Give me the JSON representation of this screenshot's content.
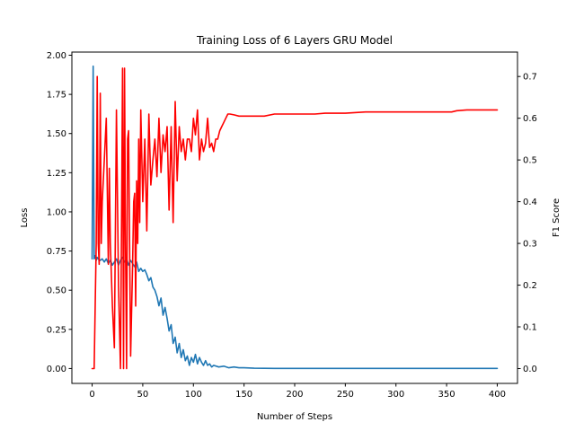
{
  "chart_data": {
    "type": "line",
    "title": "Training Loss of 6 Layers GRU Model",
    "xlabel": "Number of Steps",
    "ylabel": "Loss",
    "y2label": "F1 Score",
    "xlim": [
      -20,
      420
    ],
    "ylim": [
      -0.095,
      2.02
    ],
    "y2lim": [
      -0.0355,
      0.7585
    ],
    "xticks": [
      0,
      50,
      100,
      150,
      200,
      250,
      300,
      350,
      400
    ],
    "yticks": [
      0.0,
      0.25,
      0.5,
      0.75,
      1.0,
      1.25,
      1.5,
      1.75,
      2.0
    ],
    "ytick_labels": [
      "0.00",
      "0.25",
      "0.50",
      "0.75",
      "1.00",
      "1.25",
      "1.50",
      "1.75",
      "2.00"
    ],
    "y2ticks": [
      0.0,
      0.1,
      0.2,
      0.3,
      0.4,
      0.5,
      0.6,
      0.7
    ],
    "y2tick_labels": [
      "0.0",
      "0.1",
      "0.2",
      "0.3",
      "0.4",
      "0.5",
      "0.6",
      "0.7"
    ],
    "grid": false,
    "series": [
      {
        "axis": "left",
        "color": "#1f77b4",
        "x": [
          0,
          1,
          2,
          3,
          4,
          5,
          6,
          8,
          10,
          12,
          14,
          16,
          18,
          20,
          22,
          24,
          26,
          28,
          30,
          32,
          34,
          36,
          38,
          40,
          42,
          44,
          46,
          48,
          50,
          52,
          54,
          56,
          58,
          60,
          62,
          64,
          66,
          68,
          70,
          72,
          74,
          76,
          78,
          80,
          82,
          84,
          86,
          88,
          90,
          92,
          94,
          96,
          98,
          100,
          102,
          104,
          106,
          108,
          110,
          112,
          114,
          116,
          118,
          120,
          125,
          130,
          135,
          140,
          145,
          150,
          160,
          180,
          200,
          250,
          300,
          350,
          400
        ],
        "y": [
          0.7,
          1.93,
          0.7,
          0.72,
          0.69,
          0.71,
          0.7,
          0.69,
          0.7,
          0.68,
          0.7,
          0.67,
          0.69,
          0.66,
          0.68,
          0.7,
          0.66,
          0.69,
          0.71,
          0.68,
          0.7,
          0.66,
          0.69,
          0.67,
          0.65,
          0.68,
          0.62,
          0.64,
          0.62,
          0.63,
          0.6,
          0.56,
          0.58,
          0.52,
          0.5,
          0.46,
          0.4,
          0.45,
          0.34,
          0.39,
          0.32,
          0.24,
          0.28,
          0.16,
          0.2,
          0.1,
          0.16,
          0.07,
          0.12,
          0.05,
          0.08,
          0.02,
          0.07,
          0.04,
          0.09,
          0.03,
          0.07,
          0.04,
          0.02,
          0.05,
          0.02,
          0.03,
          0.01,
          0.02,
          0.01,
          0.015,
          0.005,
          0.01,
          0.005,
          0.005,
          0.002,
          0.001,
          0.001,
          0.001,
          0.0005,
          0.0005,
          0.0005
        ]
      },
      {
        "axis": "right",
        "color": "#ff0000",
        "x": [
          0,
          2,
          4,
          5,
          6,
          7,
          8,
          9,
          10,
          12,
          14,
          16,
          17,
          18,
          20,
          22,
          24,
          26,
          28,
          29,
          30,
          31,
          32,
          33,
          34,
          35,
          36,
          38,
          40,
          41,
          42,
          43,
          44,
          45,
          46,
          47,
          48,
          50,
          52,
          54,
          56,
          58,
          60,
          62,
          64,
          66,
          68,
          70,
          72,
          74,
          76,
          78,
          80,
          82,
          84,
          86,
          88,
          90,
          92,
          94,
          96,
          98,
          100,
          102,
          104,
          106,
          108,
          110,
          112,
          114,
          116,
          118,
          120,
          122,
          124,
          126,
          128,
          130,
          132,
          134,
          136,
          140,
          145,
          150,
          160,
          170,
          180,
          185,
          190,
          200,
          220,
          230,
          240,
          245,
          250,
          270,
          300,
          330,
          350,
          355,
          360,
          370,
          375,
          380,
          400
        ],
        "y": [
          0.0,
          0.0,
          0.3,
          0.7,
          0.3,
          0.25,
          0.66,
          0.3,
          0.4,
          0.5,
          0.6,
          0.25,
          0.48,
          0.3,
          0.15,
          0.05,
          0.62,
          0.2,
          0.0,
          0.32,
          0.72,
          0.0,
          0.72,
          0.3,
          0.0,
          0.55,
          0.57,
          0.03,
          0.25,
          0.4,
          0.42,
          0.15,
          0.45,
          0.3,
          0.55,
          0.35,
          0.62,
          0.4,
          0.55,
          0.33,
          0.61,
          0.44,
          0.5,
          0.55,
          0.46,
          0.6,
          0.47,
          0.56,
          0.52,
          0.58,
          0.38,
          0.58,
          0.35,
          0.64,
          0.45,
          0.58,
          0.52,
          0.55,
          0.5,
          0.55,
          0.55,
          0.52,
          0.6,
          0.56,
          0.62,
          0.5,
          0.55,
          0.52,
          0.54,
          0.6,
          0.53,
          0.54,
          0.52,
          0.55,
          0.55,
          0.57,
          0.58,
          0.59,
          0.6,
          0.61,
          0.61,
          0.608,
          0.605,
          0.605,
          0.605,
          0.605,
          0.61,
          0.61,
          0.61,
          0.61,
          0.61,
          0.612,
          0.612,
          0.612,
          0.612,
          0.615,
          0.615,
          0.615,
          0.615,
          0.615,
          0.618,
          0.62,
          0.62,
          0.62,
          0.62
        ]
      }
    ]
  }
}
